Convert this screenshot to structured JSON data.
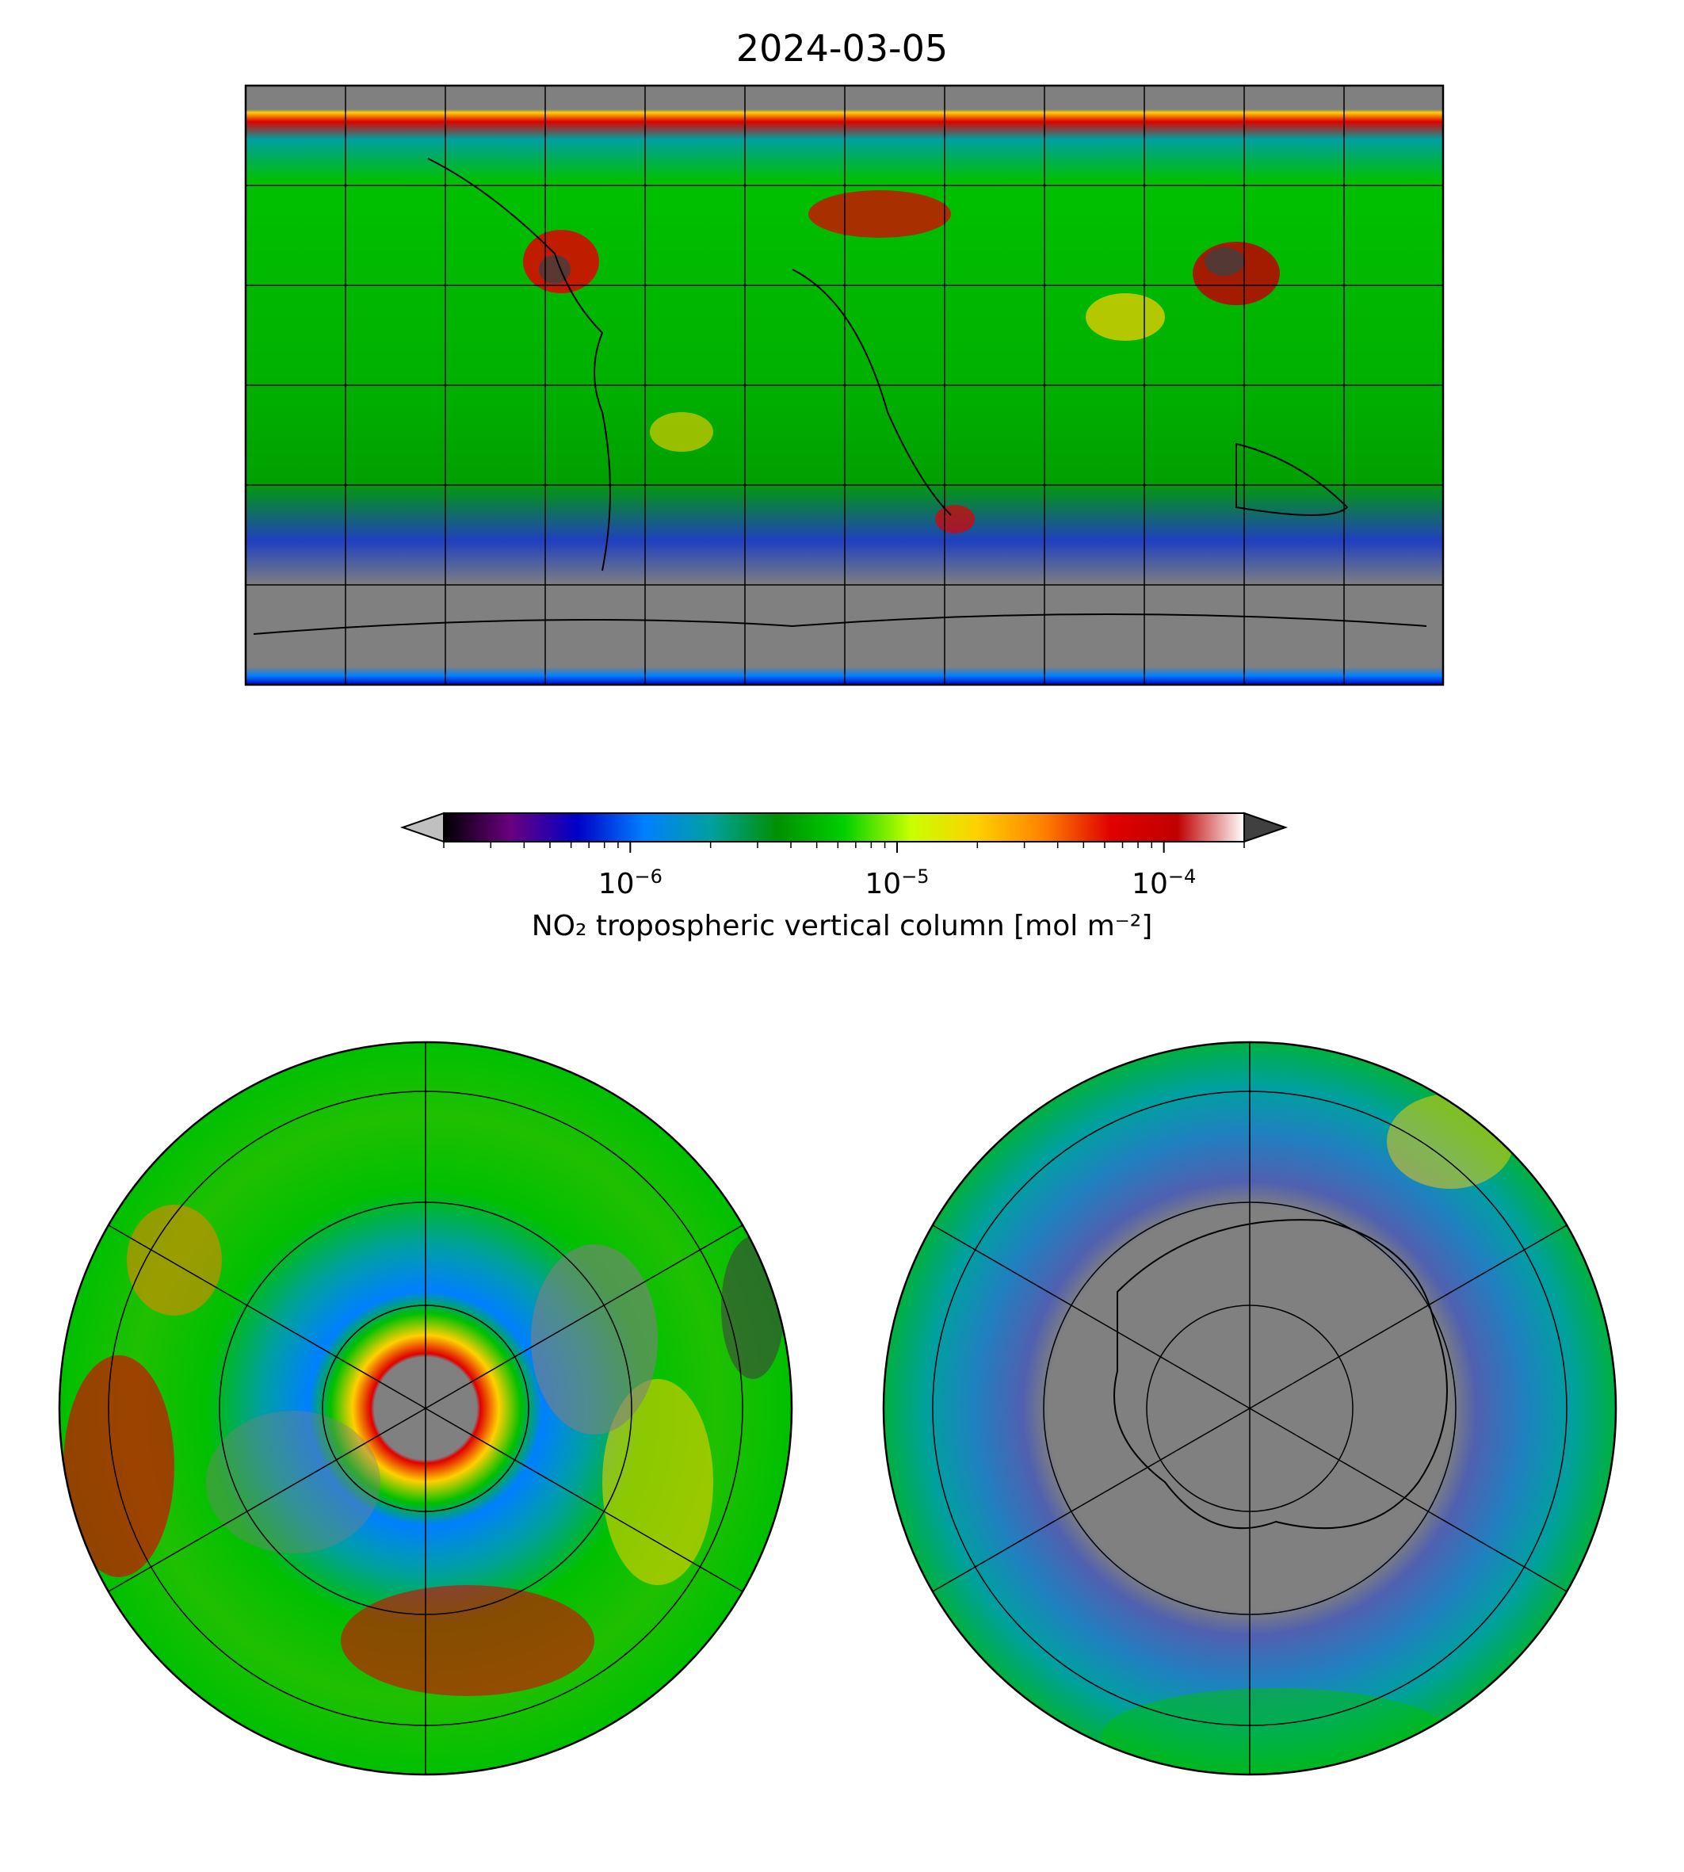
{
  "figure": {
    "title": "2024-03-05",
    "colorbar": {
      "label": "NO₂ tropospheric vertical column [mol m⁻²]",
      "scale": "log",
      "range": [
        2e-07,
        0.0002
      ],
      "extend": "both",
      "under_color": "#c0c0c0",
      "over_color": "#404040",
      "ticks": [
        {
          "base": "10",
          "exp": "−6",
          "value": 1e-06
        },
        {
          "base": "10",
          "exp": "−5",
          "value": 1e-05
        },
        {
          "base": "10",
          "exp": "−4",
          "value": 0.0001
        }
      ],
      "colors": [
        "#000000",
        "#6a007f",
        "#0000c8",
        "#0080ff",
        "#00a0a0",
        "#009000",
        "#00d000",
        "#c8ff00",
        "#ffd000",
        "#ff8000",
        "#e00000",
        "#c00000",
        "#ffffff"
      ]
    },
    "maps": {
      "global": {
        "projection": "plate-carree",
        "missing_color": "#808080"
      },
      "north_polar": {
        "projection": "north-polar-stereographic",
        "missing_color": "#808080"
      },
      "south_polar": {
        "projection": "south-polar-stereographic",
        "missing_color": "#808080"
      }
    }
  }
}
